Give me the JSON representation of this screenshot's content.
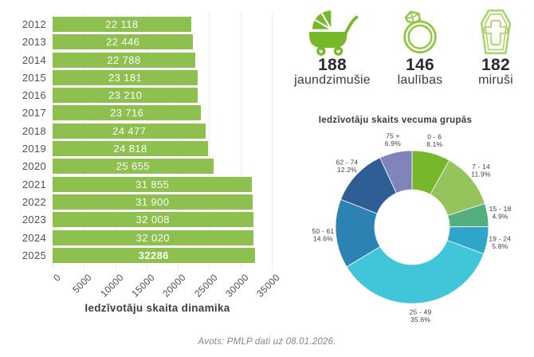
{
  "stats": [
    {
      "icon": "baby-carriage-icon",
      "value": "188",
      "label": "jaundzimušie"
    },
    {
      "icon": "wedding-ring-icon",
      "value": "146",
      "label": "laulības"
    },
    {
      "icon": "coffin-icon",
      "value": "182",
      "label": "miruši"
    }
  ],
  "footer": {
    "source": "Avots: PMLP dati uz 08.01.2026."
  },
  "colors": {
    "bar": "#8dc04e",
    "baby_icon": "#76b82a",
    "ring_icon": "#8cc63f",
    "coffin_icon": "#a9d36a",
    "gridline": "#ececec"
  },
  "chart_data": [
    {
      "type": "bar",
      "orientation": "horizontal",
      "title": "Iedzīvotāju skaita dinamika",
      "categories": [
        "2012",
        "2013",
        "2014",
        "2015",
        "2016",
        "2017",
        "2018",
        "2019",
        "2020",
        "2021",
        "2022",
        "2023",
        "2024",
        "2025"
      ],
      "values": [
        22118,
        22446,
        22788,
        23181,
        23210,
        23716,
        24477,
        24818,
        25655,
        31855,
        31900,
        32008,
        32020,
        32286
      ],
      "value_labels": [
        "22 118",
        "22 446",
        "22 788",
        "23 181",
        "23 210",
        "23 716",
        "24 477",
        "24 818",
        "25 655",
        "31 855",
        "31 900",
        "32 008",
        "32 020",
        "32286"
      ],
      "highlight_last": true,
      "xlim": [
        0,
        35000
      ],
      "x_ticks": [
        0,
        5000,
        10000,
        15000,
        20000,
        25000,
        30000,
        35000
      ],
      "grid": true,
      "bar_color": "#8dc04e"
    },
    {
      "type": "pie",
      "subtype": "donut",
      "title": "Iedzīvotāju skaits vecuma grupās",
      "direction": "clockwise",
      "start_angle_deg": 0,
      "segments": [
        {
          "label": "0 - 6",
          "pct": 8.1,
          "color": "#76b72b"
        },
        {
          "label": "7 - 14",
          "pct": 11.9,
          "color": "#95c45c"
        },
        {
          "label": "15 - 18",
          "pct": 4.9,
          "color": "#55ae7e"
        },
        {
          "label": "19 - 24",
          "pct": 5.8,
          "color": "#2fa5c9"
        },
        {
          "label": "25 - 49",
          "pct": 35.6,
          "color": "#41c6d9"
        },
        {
          "label": "50 - 61",
          "pct": 14.6,
          "color": "#2d82b4"
        },
        {
          "label": "62 - 74",
          "pct": 12.2,
          "color": "#2e5e95"
        },
        {
          "label": "75 +",
          "pct": 6.9,
          "color": "#7f85bb"
        }
      ]
    }
  ]
}
